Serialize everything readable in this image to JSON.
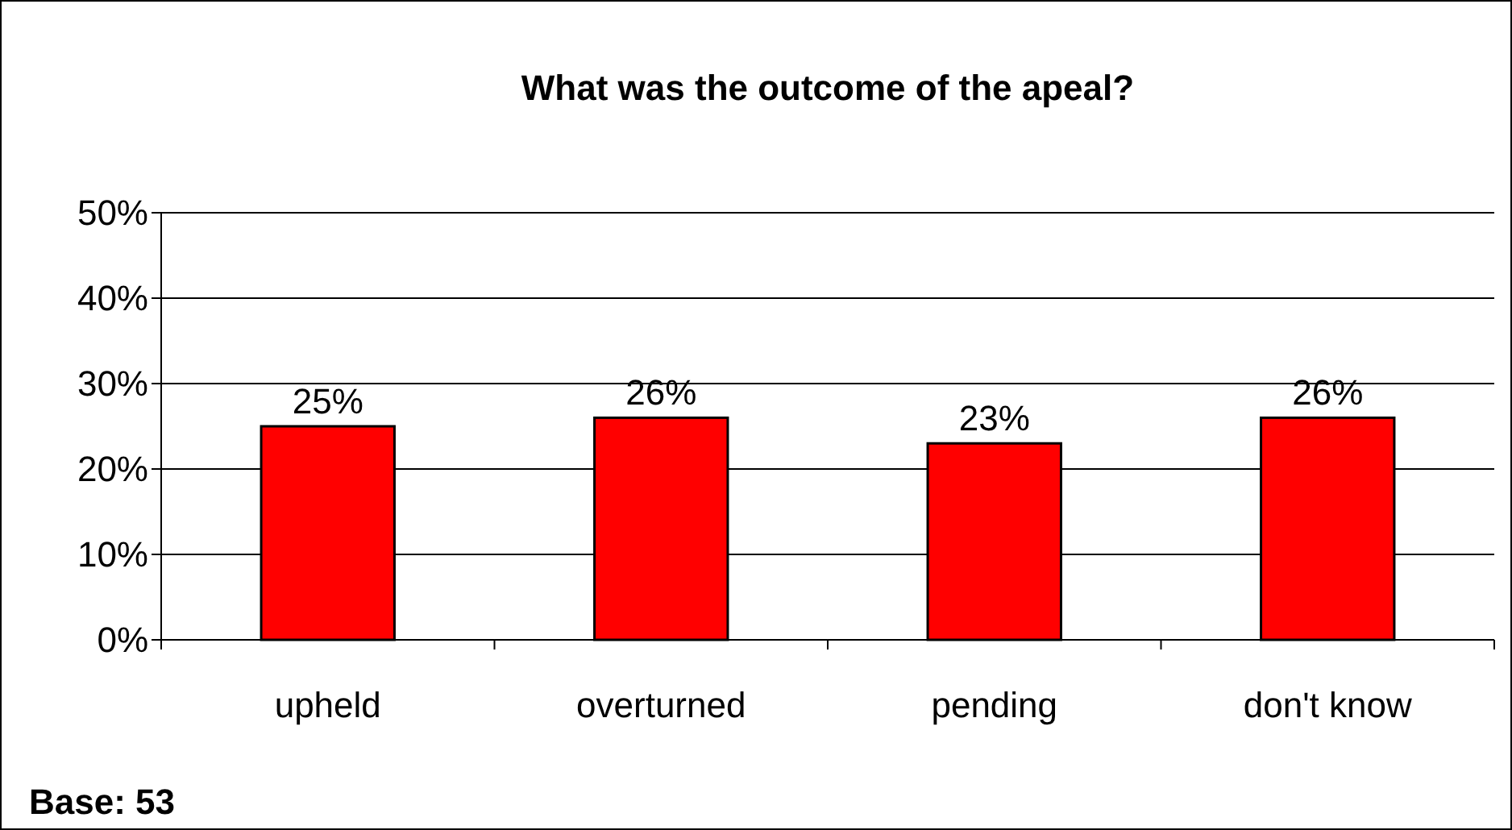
{
  "chart_data": {
    "type": "bar",
    "title": "What was the outcome of the apeal?",
    "categories": [
      "upheld",
      "overturned",
      "pending",
      "don't know"
    ],
    "values": [
      25,
      26,
      23,
      26
    ],
    "color": "#ff0000",
    "ylim": [
      0,
      50
    ],
    "yticks": [
      {
        "value": 0,
        "label": "0%"
      },
      {
        "value": 10,
        "label": "10%"
      },
      {
        "value": 20,
        "label": "20%"
      },
      {
        "value": 30,
        "label": "30%"
      },
      {
        "value": 40,
        "label": "40%"
      },
      {
        "value": 50,
        "label": "50%"
      }
    ],
    "grid": "y",
    "data_labels": true,
    "value_labels": [
      "25%",
      "26%",
      "23%",
      "26%"
    ],
    "annotations": [
      "Base: 53"
    ]
  }
}
